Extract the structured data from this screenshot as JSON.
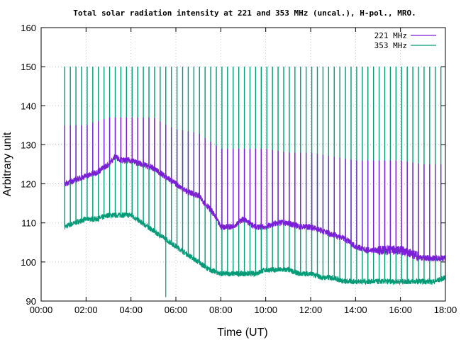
{
  "chart_data": {
    "type": "line",
    "title": "Total solar radiation intensity at 221 and 353 MHz (uncal.), H-pol., MRO.",
    "xlabel": "Time (UT)",
    "ylabel": "Arbitrary unit",
    "xlim_hours": [
      0,
      18
    ],
    "ylim": [
      90,
      160
    ],
    "x_ticks": [
      "00:00",
      "02:00",
      "04:00",
      "06:00",
      "08:00",
      "10:00",
      "12:00",
      "14:00",
      "16:00",
      "18:00"
    ],
    "x_tick_hours": [
      0,
      2,
      4,
      6,
      8,
      10,
      12,
      14,
      16,
      18
    ],
    "y_ticks": [
      90,
      100,
      110,
      120,
      130,
      140,
      150,
      160
    ],
    "grid": true,
    "legend_position": "top-right",
    "start_hour": 1.05,
    "end_hour": 18.0,
    "spike_interval_hours": 0.25,
    "series": [
      {
        "name": "221 MHz",
        "color": "#7a1fd6",
        "baseline": {
          "hours": [
            1.05,
            1.5,
            2.0,
            2.5,
            3.0,
            3.3,
            3.6,
            4.0,
            4.5,
            5.0,
            5.5,
            6.0,
            6.5,
            7.0,
            7.3,
            7.6,
            8.0,
            8.5,
            9.0,
            9.5,
            10.0,
            10.5,
            11.0,
            11.5,
            12.0,
            12.5,
            13.0,
            13.5,
            14.0,
            14.5,
            15.0,
            15.5,
            16.0,
            16.5,
            17.0,
            17.5,
            18.0
          ],
          "values": [
            120,
            121,
            122,
            123,
            125,
            127,
            126,
            126,
            125,
            124,
            122,
            120,
            118,
            117,
            115,
            113,
            109,
            109,
            111,
            109,
            109,
            110,
            110,
            109,
            109,
            108,
            107,
            106,
            104,
            103,
            103,
            103,
            103,
            102,
            101,
            101,
            101
          ]
        },
        "spike_top": {
          "hours": [
            1.05,
            2.0,
            3.0,
            4.0,
            5.0,
            5.6,
            6.0,
            7.0,
            8.0,
            9.0,
            10.0,
            11.0,
            12.0,
            13.0,
            14.0,
            15.0,
            16.0,
            17.0,
            18.0
          ],
          "values": [
            135,
            135,
            137,
            137,
            137,
            135,
            134,
            133,
            129,
            129,
            129,
            128,
            128,
            127,
            126,
            126,
            126,
            125,
            125
          ]
        }
      },
      {
        "name": "353 MHz",
        "color": "#009a77",
        "baseline": {
          "hours": [
            1.05,
            1.5,
            2.0,
            2.5,
            3.0,
            3.5,
            4.0,
            4.5,
            5.0,
            5.5,
            6.0,
            6.5,
            7.0,
            7.5,
            8.0,
            8.5,
            9.0,
            9.5,
            10.0,
            10.5,
            11.0,
            11.5,
            12.0,
            12.5,
            13.0,
            13.5,
            14.0,
            14.5,
            15.0,
            15.5,
            16.0,
            16.5,
            17.0,
            17.5,
            18.0
          ],
          "values": [
            109,
            110,
            111,
            111,
            112,
            112,
            112,
            110,
            108,
            106,
            104,
            102,
            100,
            98,
            97,
            97,
            97,
            97,
            98,
            98,
            98,
            97,
            97,
            96,
            96,
            95,
            95,
            95,
            95,
            95,
            95,
            95,
            95,
            95,
            96
          ]
        },
        "spike_top_value": 150,
        "dropout": {
          "hour": 5.55,
          "value": 91
        }
      }
    ]
  }
}
